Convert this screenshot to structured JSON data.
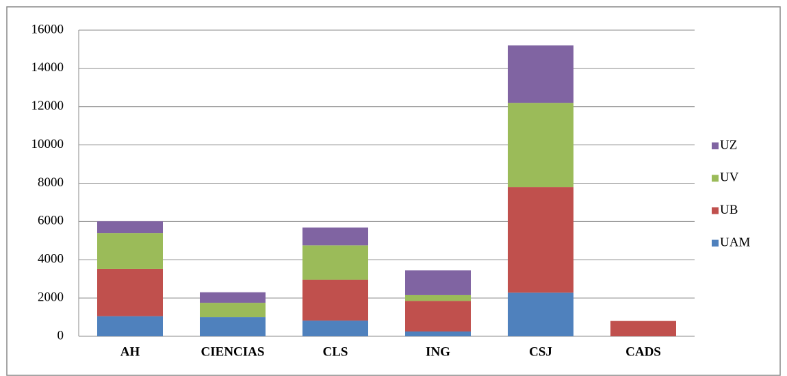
{
  "chart_data": {
    "type": "stacked_bar",
    "categories": [
      "AH",
      "CIENCIAS",
      "CLS",
      "ING",
      "CSJ",
      "CADS"
    ],
    "series": [
      {
        "name": "UAM",
        "color": "#4f81bd",
        "values": [
          1050,
          1000,
          820,
          250,
          2280,
          0
        ]
      },
      {
        "name": "UB",
        "color": "#c0504d",
        "values": [
          2460,
          0,
          2130,
          1600,
          5520,
          800
        ]
      },
      {
        "name": "UV",
        "color": "#9bbb59",
        "values": [
          1890,
          750,
          1800,
          300,
          4400,
          0
        ]
      },
      {
        "name": "UZ",
        "color": "#8064a2",
        "values": [
          610,
          550,
          930,
          1300,
          3000,
          0
        ]
      }
    ],
    "ylim": [
      0,
      16000
    ],
    "yticks": [
      0,
      2000,
      4000,
      6000,
      8000,
      10000,
      12000,
      14000,
      16000
    ],
    "grid": true,
    "legend": "right"
  }
}
